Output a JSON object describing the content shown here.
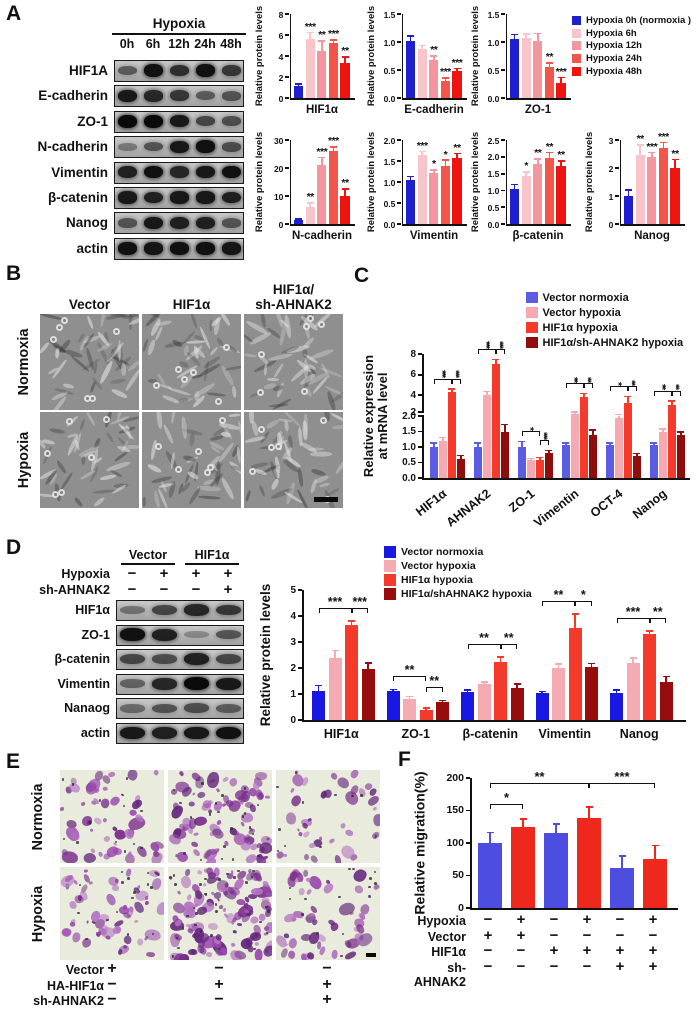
{
  "panels": {
    "a": {
      "letter": "A",
      "blot": {
        "header": "Hypoxia",
        "lanes": [
          "0h",
          "6h",
          "12h",
          "24h",
          "48h"
        ],
        "rows": [
          {
            "label": "HIF1A",
            "bands": [
              0.45,
              0.95,
              0.75,
              0.95,
              0.7
            ]
          },
          {
            "label": "E-cadherin",
            "bands": [
              0.9,
              0.8,
              0.7,
              0.45,
              0.5
            ]
          },
          {
            "label": "ZO-1",
            "bands": [
              1,
              1,
              0.9,
              0.6,
              0.55
            ]
          },
          {
            "label": "N-cadherin",
            "bands": [
              0.25,
              0.5,
              0.9,
              0.95,
              0.55
            ]
          },
          {
            "label": "Vimentin",
            "bands": [
              0.85,
              0.95,
              0.8,
              0.9,
              0.95
            ]
          },
          {
            "label": "β-catenin",
            "bands": [
              0.9,
              0.85,
              0.9,
              0.9,
              0.85
            ]
          },
          {
            "label": "Nanog",
            "bands": [
              0.5,
              0.9,
              0.85,
              0.85,
              0.5
            ]
          },
          {
            "label": "actin",
            "bands": [
              0.95,
              0.92,
              0.95,
              0.95,
              0.92
            ]
          }
        ]
      },
      "legend": [
        {
          "label": "Hypoxia 0h (normoxia )",
          "color": "#1f1fd0"
        },
        {
          "label": "Hypoxia 6h",
          "color": "#f9c4ca"
        },
        {
          "label": "Hypoxia 12h",
          "color": "#f4969e"
        },
        {
          "label": "Hypoxia 24h",
          "color": "#f2564b"
        },
        {
          "label": "Hypoxia 48h",
          "color": "#ee1412"
        }
      ]
    },
    "b": {
      "letter": "B",
      "col_headers": [
        "Vector",
        "HIF1α",
        "HIF1α/\nsh-AHNAK2"
      ],
      "row_labels": [
        "Normoxia",
        "Hypoxia"
      ]
    },
    "c": {
      "letter": "C",
      "legend": [
        {
          "label": "Vector normoxia",
          "color": "#5c5ce2"
        },
        {
          "label": "Vector hypoxia",
          "color": "#f6a9b1"
        },
        {
          "label": "HIF1α hypoxia",
          "color": "#f43b2b"
        },
        {
          "label": "HIF1α/sh-AHNAK2 hypoxia",
          "color": "#8e0e0e"
        }
      ]
    },
    "d": {
      "letter": "D",
      "blot": {
        "groups": [
          "Vector",
          "HIF1α"
        ],
        "conditions": [
          {
            "label": "Hypoxia",
            "cells": [
              "−",
              "+",
              "+",
              "+"
            ]
          },
          {
            "label": "sh-AHNAK2",
            "cells": [
              "−",
              "−",
              "−",
              "+"
            ]
          }
        ],
        "rows": [
          {
            "label": "HIF1α",
            "bands": [
              0.3,
              0.6,
              0.8,
              0.7
            ]
          },
          {
            "label": "ZO-1",
            "bands": [
              0.95,
              0.85,
              0.15,
              0.5
            ]
          },
          {
            "label": "β-catenin",
            "bands": [
              0.6,
              0.55,
              0.85,
              0.6
            ]
          },
          {
            "label": "Vimentin",
            "bands": [
              0.4,
              0.8,
              1,
              0.9
            ]
          },
          {
            "label": "Nanaog",
            "bands": [
              0.35,
              0.5,
              0.55,
              0.45
            ]
          },
          {
            "label": "actin",
            "bands": [
              0.9,
              0.85,
              0.9,
              0.95
            ]
          }
        ]
      },
      "legend": [
        {
          "label": "Vector normoxia",
          "color": "#1818e0"
        },
        {
          "label": "Vector hypoxia",
          "color": "#f4abb2"
        },
        {
          "label": "HIF1α hypoxia",
          "color": "#f43b2b"
        },
        {
          "label": "HIF1α/shAHNAK2 hypoxia",
          "color": "#970c0c"
        }
      ]
    },
    "e": {
      "letter": "E",
      "row_labels": [
        "Normoxia",
        "Hypoxia"
      ],
      "cell_density": [
        [
          55,
          85,
          40
        ],
        [
          60,
          130,
          55
        ]
      ],
      "matrix_rows": [
        {
          "label": "Vector",
          "cells": [
            "+",
            "−",
            "−"
          ]
        },
        {
          "label": "HA-HIF1α",
          "cells": [
            "−",
            "+",
            "+"
          ]
        },
        {
          "label": "sh-AHNAK2",
          "cells": [
            "−",
            "−",
            "+"
          ]
        }
      ]
    },
    "f": {
      "letter": "F",
      "matrix_rows": [
        {
          "label": "Hypoxia",
          "cells": [
            "−",
            "+",
            "−",
            "+",
            "−",
            "+"
          ]
        },
        {
          "label": "Vector",
          "cells": [
            "+",
            "+",
            "−",
            "−",
            "−",
            "−"
          ]
        },
        {
          "label": "HIF1α",
          "cells": [
            "−",
            "−",
            "+",
            "+",
            "+",
            "+"
          ]
        },
        {
          "label": "sh-AHNAK2",
          "cells": [
            "−",
            "−",
            "−",
            "−",
            "+",
            "+"
          ]
        }
      ]
    }
  },
  "chart_data": [
    {
      "id": "a-hif1a",
      "panel": "A",
      "type": "bar",
      "title": "HIF1α",
      "ylabel": "Relative protein levels",
      "values": [
        1.1,
        5.6,
        4.5,
        5.2,
        3.3
      ],
      "errors": [
        0.15,
        0.55,
        0.85,
        0.25,
        0.55
      ],
      "sig": [
        "",
        "***",
        "**",
        "***",
        "**"
      ],
      "ylim": [
        0,
        8
      ],
      "ytick_vals": [
        0,
        2,
        4,
        6,
        8
      ],
      "ytick_labels": [
        "0",
        "2",
        "4",
        "6",
        "8"
      ]
    },
    {
      "id": "a-ecadherin",
      "panel": "A",
      "type": "bar",
      "title": "E-cadherin",
      "ylabel": "Relative protein levels",
      "values": [
        1.02,
        0.87,
        0.68,
        0.3,
        0.48
      ],
      "errors": [
        0.07,
        0.05,
        0.06,
        0.04,
        0.03
      ],
      "sig": [
        "",
        "",
        "**",
        "***",
        "***"
      ],
      "ylim": [
        0,
        1.5
      ],
      "ytick_vals": [
        0,
        0.5,
        1,
        1.5
      ],
      "ytick_labels": [
        "0.0",
        "0.5",
        "1.0",
        "1.5"
      ]
    },
    {
      "id": "a-zo1",
      "panel": "A",
      "type": "bar",
      "title": "ZO-1",
      "ylabel": "Relative protein levels",
      "values": [
        1.05,
        1.08,
        1.02,
        0.56,
        0.27
      ],
      "errors": [
        0.07,
        0.05,
        0.12,
        0.05,
        0.08
      ],
      "sig": [
        "",
        "",
        "",
        "**",
        "***"
      ],
      "ylim": [
        0,
        1.5
      ],
      "ytick_vals": [
        0,
        0.5,
        1,
        1.5
      ],
      "ytick_labels": [
        "0.0",
        "0.5",
        "1.0",
        "1.5"
      ]
    },
    {
      "id": "a-ncadherin",
      "panel": "A",
      "type": "bar",
      "title": "N-cadherin",
      "ylabel": "Relative protein levels",
      "values": [
        1.3,
        6,
        21,
        26,
        10
      ],
      "errors": [
        0.3,
        1.2,
        2.5,
        1.2,
        2.2
      ],
      "sig": [
        "",
        "**",
        "***",
        "***",
        "**"
      ],
      "ylim": [
        0,
        30
      ],
      "ytick_vals": [
        0,
        10,
        20,
        30
      ],
      "ytick_labels": [
        "0",
        "10",
        "20",
        "30"
      ]
    },
    {
      "id": "a-vimentin",
      "panel": "A",
      "type": "bar",
      "title": "Vimentin",
      "ylabel": "Relative protein levels",
      "values": [
        1.05,
        1.65,
        1.22,
        1.38,
        1.58
      ],
      "errors": [
        0.06,
        0.06,
        0.05,
        0.12,
        0.08
      ],
      "sig": [
        "",
        "***",
        "*",
        "*",
        "**"
      ],
      "ylim": [
        0,
        2
      ],
      "ytick_vals": [
        0,
        0.5,
        1,
        1.5,
        2
      ],
      "ytick_labels": [
        "0.0",
        "0.5",
        "1.0",
        "1.5",
        "2.0"
      ]
    },
    {
      "id": "a-bcatenin",
      "panel": "A",
      "type": "bar",
      "title": "β-catenin",
      "ylabel": "Relative protein levels",
      "values": [
        1.05,
        1.42,
        1.8,
        1.95,
        1.73
      ],
      "errors": [
        0.1,
        0.1,
        0.12,
        0.15,
        0.12
      ],
      "sig": [
        "",
        "*",
        "**",
        "**",
        "**"
      ],
      "ylim": [
        0,
        2.5
      ],
      "ytick_vals": [
        0,
        0.5,
        1,
        1.5,
        2,
        2.5
      ],
      "ytick_labels": [
        "0.0",
        "0.5",
        "1.0",
        "1.5",
        "2.0",
        "2.5"
      ]
    },
    {
      "id": "a-nanog",
      "panel": "A",
      "type": "bar",
      "title": "Nanog",
      "ylabel": "Relative protein levels",
      "values": [
        1,
        2.45,
        2.4,
        2.7,
        2
      ],
      "errors": [
        0.18,
        0.35,
        0.12,
        0.18,
        0.28
      ],
      "sig": [
        "",
        "**",
        "***",
        "***",
        "**"
      ],
      "ylim": [
        0,
        3
      ],
      "ytick_vals": [
        0,
        1,
        2,
        3
      ],
      "ytick_labels": [
        "0",
        "1",
        "2",
        "3"
      ]
    },
    {
      "id": "c-mrna",
      "panel": "C",
      "type": "grouped-bar",
      "ylabel": "Relative expression\nat mRNA level",
      "axis_break_at": 2,
      "categories": [
        "HIF1α",
        "AHNAK2",
        "ZO-1",
        "Vimentin",
        "OCT-4",
        "Nanog"
      ],
      "series": [
        {
          "name": "Vector normoxia",
          "color": "#5c5ce2",
          "values": [
            1.0,
            1.0,
            1.0,
            1.05,
            1.05,
            1.05
          ],
          "errors": [
            0.1,
            0.1,
            0.15,
            0.05,
            0.06,
            0.06
          ]
        },
        {
          "name": "Vector hypoxia",
          "color": "#f6a9b1",
          "values": [
            1.2,
            4.0,
            0.57,
            2.2,
            1.95,
            1.48
          ],
          "errors": [
            0.08,
            0.3,
            0.04,
            0.1,
            0.1,
            0.08
          ]
        },
        {
          "name": "HIF1α hypoxia",
          "color": "#f43b2b",
          "values": [
            4.3,
            7.0,
            0.58,
            3.8,
            3.3,
            3.1
          ],
          "errors": [
            0.25,
            0.4,
            0.05,
            0.3,
            0.5,
            0.3
          ]
        },
        {
          "name": "HIF1α/sh-AHNAK2 hypoxia",
          "color": "#8e0e0e",
          "values": [
            0.62,
            1.5,
            0.82,
            1.4,
            0.7,
            1.38
          ],
          "errors": [
            0.08,
            0.2,
            0.04,
            0.12,
            0.06,
            0.08
          ]
        }
      ],
      "sig_brackets": [
        {
          "cat": 0,
          "from": 0,
          "to": 2,
          "label": "***"
        },
        {
          "cat": 0,
          "from": 2,
          "to": 3,
          "label": "***"
        },
        {
          "cat": 1,
          "from": 0,
          "to": 2,
          "label": "***"
        },
        {
          "cat": 1,
          "from": 2,
          "to": 3,
          "label": "***"
        },
        {
          "cat": 2,
          "from": 0,
          "to": 2,
          "label": "*"
        },
        {
          "cat": 2,
          "from": 2,
          "to": 3,
          "label": "***"
        },
        {
          "cat": 3,
          "from": 0,
          "to": 2,
          "label": "**"
        },
        {
          "cat": 3,
          "from": 2,
          "to": 3,
          "label": "**"
        },
        {
          "cat": 4,
          "from": 0,
          "to": 2,
          "label": "*"
        },
        {
          "cat": 4,
          "from": 2,
          "to": 3,
          "label": "**"
        },
        {
          "cat": 5,
          "from": 0,
          "to": 2,
          "label": "**"
        },
        {
          "cat": 5,
          "from": 2,
          "to": 3,
          "label": "**"
        }
      ],
      "ylim": [
        0,
        8
      ],
      "ytick_vals": [
        0,
        0.5,
        1,
        1.5,
        2,
        2,
        4,
        6,
        8
      ],
      "ytick_labels": [
        "0.0",
        "0.5",
        "1.0",
        "1.5",
        "2.0",
        "2",
        "4",
        "6",
        "8"
      ]
    },
    {
      "id": "d-protein",
      "panel": "D",
      "type": "grouped-bar",
      "ylabel": "Relative protein levels",
      "categories": [
        "HIF1α",
        "ZO-1",
        "β-catenin",
        "Vimentin",
        "Nanog"
      ],
      "series": [
        {
          "name": "Vector normoxia",
          "color": "#1818e0",
          "values": [
            1.1,
            1.1,
            1.07,
            1.03,
            1.05
          ],
          "errors": [
            0.2,
            0.05,
            0.05,
            0.04,
            0.08
          ]
        },
        {
          "name": "Vector hypoxia",
          "color": "#f4abb2",
          "values": [
            2.4,
            0.82,
            1.38,
            2.0,
            2.2
          ],
          "errors": [
            0.25,
            0.06,
            0.05,
            0.12,
            0.15
          ]
        },
        {
          "name": "HIF1α hypoxia",
          "color": "#f43b2b",
          "values": [
            3.65,
            0.38,
            2.25,
            3.55,
            3.3
          ],
          "errors": [
            0.12,
            0.05,
            0.15,
            0.5,
            0.1
          ]
        },
        {
          "name": "HIF1α/shAHNAK2 hypoxia",
          "color": "#970c0c",
          "values": [
            1.95,
            0.68,
            1.25,
            2.02,
            1.45
          ],
          "errors": [
            0.22,
            0.04,
            0.1,
            0.12,
            0.2
          ]
        }
      ],
      "sig_brackets": [
        {
          "cat": 0,
          "from": 0,
          "to": 2,
          "label": "***"
        },
        {
          "cat": 0,
          "from": 2,
          "to": 3,
          "label": "***"
        },
        {
          "cat": 1,
          "from": 0,
          "to": 2,
          "label": "**"
        },
        {
          "cat": 1,
          "from": 2,
          "to": 3,
          "label": "**"
        },
        {
          "cat": 2,
          "from": 0,
          "to": 2,
          "label": "**"
        },
        {
          "cat": 2,
          "from": 2,
          "to": 3,
          "label": "**"
        },
        {
          "cat": 3,
          "from": 0,
          "to": 2,
          "label": "**"
        },
        {
          "cat": 3,
          "from": 2,
          "to": 3,
          "label": "*"
        },
        {
          "cat": 4,
          "from": 0,
          "to": 2,
          "label": "***"
        },
        {
          "cat": 4,
          "from": 2,
          "to": 3,
          "label": "**"
        }
      ],
      "ylim": [
        0,
        5
      ],
      "ytick_vals": [
        0,
        1,
        2,
        3,
        4,
        5
      ],
      "ytick_labels": [
        "0",
        "1",
        "2",
        "3",
        "4",
        "5"
      ]
    },
    {
      "id": "f-migration",
      "panel": "F",
      "type": "bar",
      "ylabel": "Relative migration(%)",
      "values": [
        100,
        124,
        115,
        139,
        62,
        75
      ],
      "errors": [
        15,
        12,
        13,
        15,
        17,
        20
      ],
      "colors": [
        "#4d4de0",
        "#ee281c",
        "#4d4de0",
        "#ee281c",
        "#4d4de0",
        "#ee281c"
      ],
      "sig_brackets": [
        {
          "from": 0,
          "to": 1,
          "label": "*",
          "height": 152
        },
        {
          "from": 0,
          "to": 3,
          "label": "**",
          "height": 184
        },
        {
          "from": 3,
          "to": 5,
          "label": "***",
          "height": 184
        }
      ],
      "ylim": [
        0,
        200
      ],
      "ytick_vals": [
        0,
        50,
        100,
        150,
        200
      ],
      "ytick_labels": [
        "0",
        "50",
        "100",
        "150",
        "200"
      ]
    }
  ]
}
